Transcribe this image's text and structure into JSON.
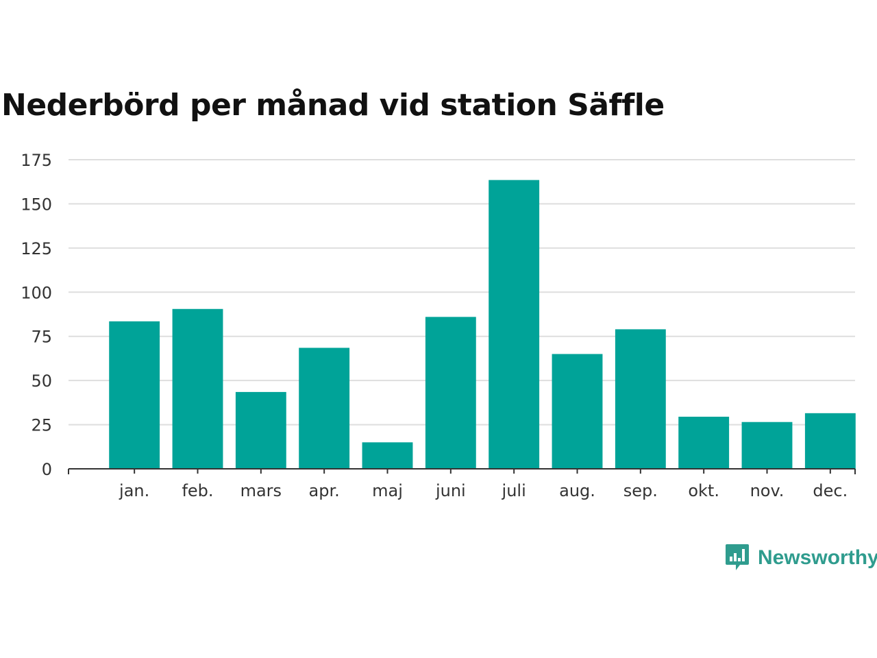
{
  "chart_data": {
    "type": "bar",
    "title": "Nederbörd per månad vid station Säffle",
    "categories": [
      "jan.",
      "feb.",
      "mars",
      "apr.",
      "maj",
      "juni",
      "juli",
      "aug.",
      "sep.",
      "okt.",
      "nov.",
      "dec."
    ],
    "values": [
      83.5,
      90.5,
      43.5,
      68.5,
      15,
      86,
      163.5,
      65,
      79,
      29.5,
      26.5,
      31.5
    ],
    "ylim": [
      0,
      175
    ],
    "yticks": [
      0,
      25,
      50,
      75,
      100,
      125,
      150,
      175
    ],
    "xlabel": "",
    "ylabel": "",
    "grid": true,
    "bar_color": "#00a398"
  },
  "brand": {
    "name": "Newsworthy",
    "icon": "newsworthy-logo-icon",
    "color": "#2f9c8e"
  }
}
